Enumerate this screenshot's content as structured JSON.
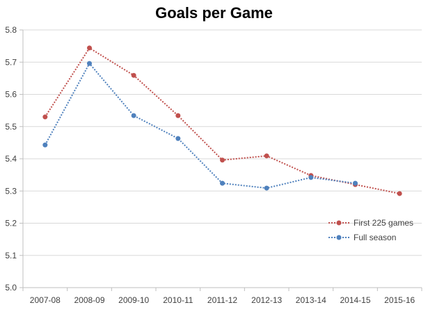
{
  "chart_data": {
    "type": "line",
    "title": "Goals per Game",
    "xlabel": "",
    "ylabel": "",
    "ylim": [
      5.0,
      5.8
    ],
    "yticks": [
      "5.0",
      "5.1",
      "5.2",
      "5.3",
      "5.4",
      "5.5",
      "5.6",
      "5.7",
      "5.8"
    ],
    "grid": true,
    "legend_position": "lower-right inside",
    "categories": [
      "2007-08",
      "2008-09",
      "2009-10",
      "2010-11",
      "2011-12",
      "2012-13",
      "2013-14",
      "2014-15",
      "2015-16"
    ],
    "series": [
      {
        "name": "First 225 games",
        "color": "#C0504D",
        "line_style": "dotted",
        "marker": "circle",
        "values": [
          5.53,
          5.744,
          5.659,
          5.534,
          5.396,
          5.409,
          5.348,
          5.32,
          5.292
        ]
      },
      {
        "name": "Full season",
        "color": "#4F81BD",
        "line_style": "dotted",
        "marker": "circle",
        "values": [
          5.443,
          5.696,
          5.534,
          5.463,
          5.324,
          5.309,
          5.342,
          5.324,
          null
        ]
      }
    ]
  }
}
